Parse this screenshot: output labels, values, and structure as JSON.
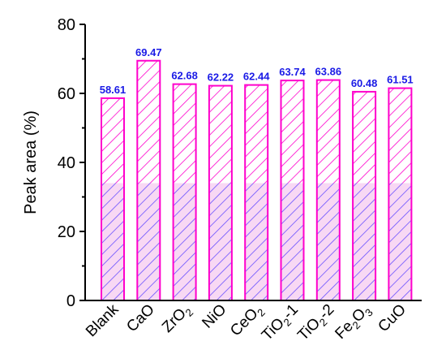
{
  "chart_data": {
    "type": "bar",
    "title": "",
    "xlabel": "",
    "ylabel": "Peak area (%)",
    "ylim": [
      0,
      80
    ],
    "yticks": [
      0,
      20,
      40,
      60,
      80
    ],
    "grid": false,
    "legend": "none",
    "categories": [
      "Blank",
      "CaO",
      "ZrO2",
      "NiO",
      "CeO2",
      "TiO2-1",
      "TiO2-2",
      "Fe2O3",
      "CuO"
    ],
    "category_parts": [
      [
        {
          "t": "Blank",
          "sub": false
        }
      ],
      [
        {
          "t": "CaO",
          "sub": false
        }
      ],
      [
        {
          "t": "ZrO",
          "sub": false
        },
        {
          "t": "2",
          "sub": true
        }
      ],
      [
        {
          "t": "NiO",
          "sub": false
        }
      ],
      [
        {
          "t": "CeO",
          "sub": false
        },
        {
          "t": "2",
          "sub": true
        }
      ],
      [
        {
          "t": "TiO",
          "sub": false
        },
        {
          "t": "2",
          "sub": true
        },
        {
          "t": "-1",
          "sub": false
        }
      ],
      [
        {
          "t": "TiO",
          "sub": false
        },
        {
          "t": "2",
          "sub": true
        },
        {
          "t": "-2",
          "sub": false
        }
      ],
      [
        {
          "t": "Fe",
          "sub": false
        },
        {
          "t": "2",
          "sub": true
        },
        {
          "t": "O",
          "sub": false
        },
        {
          "t": "3",
          "sub": true
        }
      ],
      [
        {
          "t": "CuO",
          "sub": false
        }
      ]
    ],
    "values": [
      58.61,
      69.47,
      62.68,
      62.22,
      62.44,
      63.74,
      63.86,
      60.48,
      61.51
    ],
    "data_labels": [
      "58.61",
      "69.47",
      "62.68",
      "62.22",
      "62.44",
      "63.74",
      "63.86",
      "60.48",
      "61.51"
    ],
    "split_value": 34,
    "colors": {
      "upper_edge": "#ff00cc",
      "upper_hatch": "#ff00cc",
      "upper_fill": "#ffffff",
      "lower_edge": "#ff00cc",
      "lower_hatch": "#6a50ff",
      "lower_fill": "#f8d8f4",
      "label": "#1a1ae6",
      "axis": "#000000"
    }
  }
}
